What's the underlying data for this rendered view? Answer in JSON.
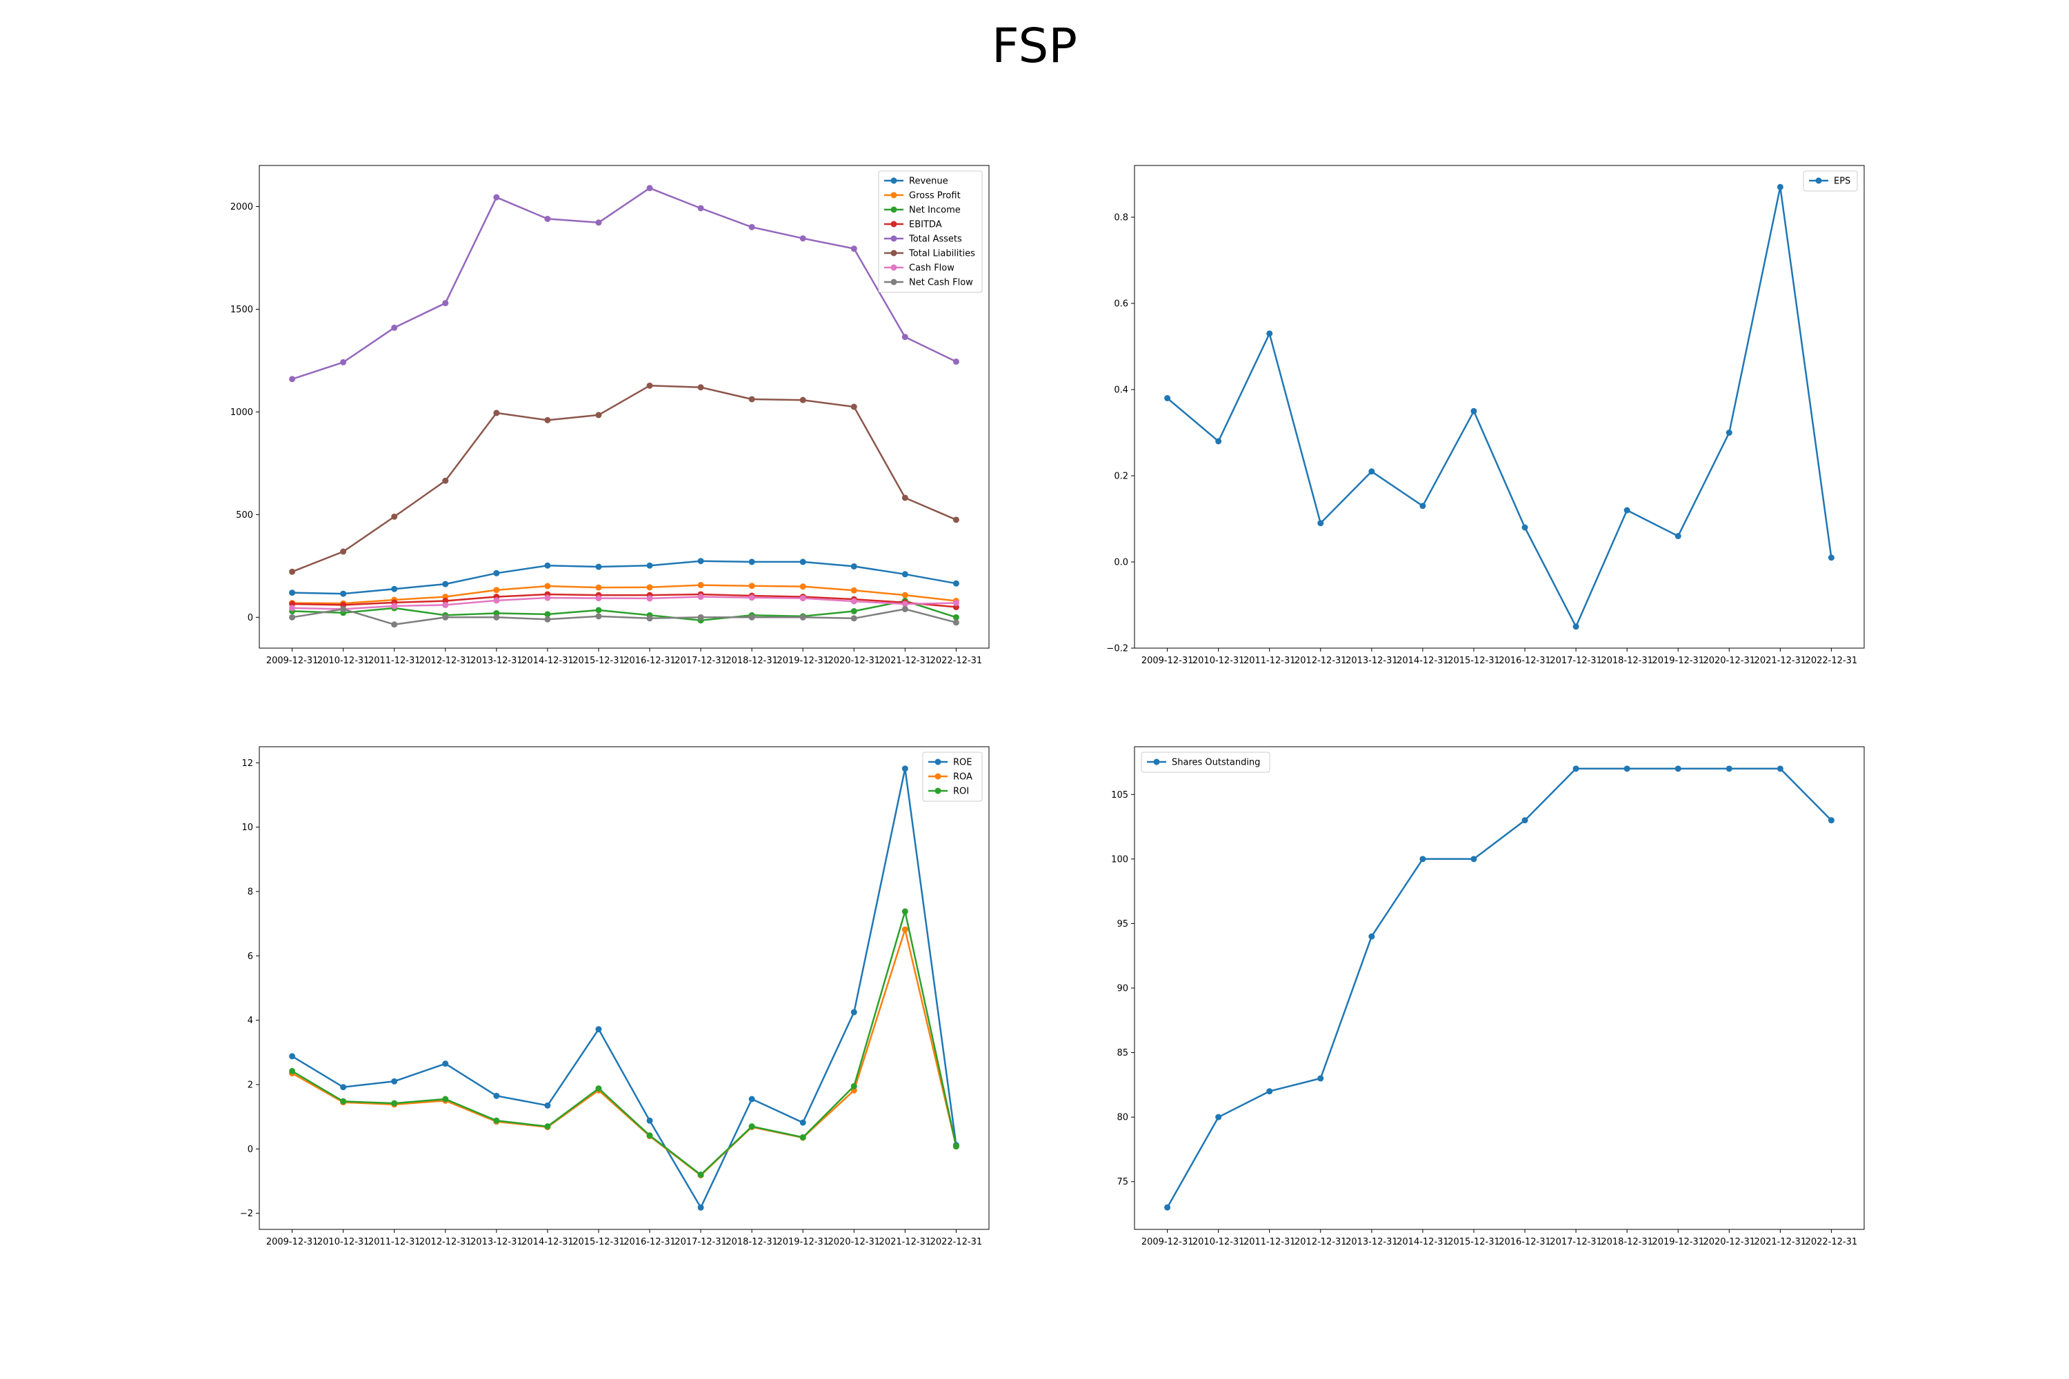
{
  "figure": {
    "title": "FSP"
  },
  "colors": {
    "C0": "#1f77b4",
    "C1": "#ff7f0e",
    "C2": "#2ca02c",
    "C3": "#d62728",
    "C4": "#9467bd",
    "C5": "#8c564b",
    "C6": "#e377c2",
    "C7": "#7f7f7f"
  },
  "chart_data": [
    {
      "type": "line",
      "title": "",
      "xlabel": "",
      "ylabel": "",
      "categories": [
        "2009-12-31",
        "2010-12-31",
        "2011-12-31",
        "2012-12-31",
        "2013-12-31",
        "2014-12-31",
        "2015-12-31",
        "2016-12-31",
        "2017-12-31",
        "2018-12-31",
        "2019-12-31",
        "2020-12-31",
        "2021-12-31",
        "2022-12-31"
      ],
      "ylim": [
        -150,
        2200
      ],
      "yticks": [
        0,
        500,
        1000,
        1500,
        2000
      ],
      "ytick_labels": [
        "0",
        "500",
        "1000",
        "1500",
        "2000"
      ],
      "legend_position": "top-right",
      "grid": false,
      "series": [
        {
          "name": "Revenue",
          "color": "#1f77b4",
          "values": [
            120,
            115,
            138,
            162,
            215,
            252,
            246,
            252,
            274,
            270,
            270,
            248,
            210,
            165
          ]
        },
        {
          "name": "Gross Profit",
          "color": "#ff7f0e",
          "values": [
            70,
            68,
            85,
            100,
            133,
            152,
            145,
            146,
            157,
            153,
            150,
            131,
            108,
            80
          ]
        },
        {
          "name": "Net Income",
          "color": "#2ca02c",
          "values": [
            30,
            22,
            45,
            10,
            20,
            15,
            35,
            10,
            -15,
            10,
            5,
            30,
            80,
            0
          ]
        },
        {
          "name": "EBITDA",
          "color": "#d62728",
          "values": [
            65,
            60,
            72,
            80,
            100,
            112,
            108,
            108,
            112,
            105,
            100,
            88,
            72,
            50
          ]
        },
        {
          "name": "Total Assets",
          "color": "#9467bd",
          "values": [
            1160,
            1242,
            1410,
            1530,
            2045,
            1940,
            1922,
            2090,
            1992,
            1900,
            1845,
            1795,
            1365,
            1245
          ]
        },
        {
          "name": "Total Liabilities",
          "color": "#8c564b",
          "values": [
            222,
            320,
            490,
            665,
            995,
            960,
            985,
            1128,
            1120,
            1062,
            1058,
            1025,
            582,
            475
          ]
        },
        {
          "name": "Cash Flow",
          "color": "#e377c2",
          "values": [
            45,
            40,
            55,
            60,
            82,
            95,
            93,
            92,
            100,
            96,
            93,
            78,
            65,
            70
          ]
        },
        {
          "name": "Net Cash Flow",
          "color": "#7f7f7f",
          "values": [
            0,
            40,
            -35,
            0,
            0,
            -10,
            5,
            -5,
            0,
            0,
            0,
            -5,
            40,
            -25
          ]
        }
      ]
    },
    {
      "type": "line",
      "title": "",
      "xlabel": "",
      "ylabel": "",
      "categories": [
        "2009-12-31",
        "2010-12-31",
        "2011-12-31",
        "2012-12-31",
        "2013-12-31",
        "2014-12-31",
        "2015-12-31",
        "2016-12-31",
        "2017-12-31",
        "2018-12-31",
        "2019-12-31",
        "2020-12-31",
        "2021-12-31",
        "2022-12-31"
      ],
      "ylim": [
        -0.2,
        0.92
      ],
      "yticks": [
        -0.2,
        0.0,
        0.2,
        0.4,
        0.6,
        0.8
      ],
      "ytick_labels": [
        "−0.2",
        "0.0",
        "0.2",
        "0.4",
        "0.6",
        "0.8"
      ],
      "legend_position": "top-right",
      "grid": false,
      "series": [
        {
          "name": "EPS",
          "color": "#1f77b4",
          "values": [
            0.38,
            0.28,
            0.53,
            0.09,
            0.21,
            0.13,
            0.35,
            0.08,
            -0.15,
            0.12,
            0.06,
            0.3,
            0.87,
            0.01
          ]
        }
      ]
    },
    {
      "type": "line",
      "title": "",
      "xlabel": "",
      "ylabel": "",
      "categories": [
        "2009-12-31",
        "2010-12-31",
        "2011-12-31",
        "2012-12-31",
        "2013-12-31",
        "2014-12-31",
        "2015-12-31",
        "2016-12-31",
        "2017-12-31",
        "2018-12-31",
        "2019-12-31",
        "2020-12-31",
        "2021-12-31",
        "2022-12-31"
      ],
      "ylim": [
        -2.5,
        12.5
      ],
      "yticks": [
        -2,
        0,
        2,
        4,
        6,
        8,
        10,
        12
      ],
      "ytick_labels": [
        "−2",
        "0",
        "2",
        "4",
        "6",
        "8",
        "10",
        "12"
      ],
      "legend_position": "top-right",
      "grid": false,
      "series": [
        {
          "name": "ROE",
          "color": "#1f77b4",
          "values": [
            2.88,
            1.92,
            2.1,
            2.65,
            1.65,
            1.35,
            3.72,
            0.88,
            -1.82,
            1.55,
            0.82,
            4.25,
            11.82,
            0.12
          ]
        },
        {
          "name": "ROA",
          "color": "#ff7f0e",
          "values": [
            2.35,
            1.45,
            1.38,
            1.5,
            0.85,
            0.68,
            1.82,
            0.4,
            -0.82,
            0.68,
            0.35,
            1.82,
            6.82,
            0.08
          ]
        },
        {
          "name": "ROI",
          "color": "#2ca02c",
          "values": [
            2.42,
            1.48,
            1.42,
            1.55,
            0.88,
            0.7,
            1.88,
            0.42,
            -0.8,
            0.7,
            0.36,
            1.95,
            7.38,
            0.08
          ]
        }
      ]
    },
    {
      "type": "line",
      "title": "",
      "xlabel": "",
      "ylabel": "",
      "categories": [
        "2009-12-31",
        "2010-12-31",
        "2011-12-31",
        "2012-12-31",
        "2013-12-31",
        "2014-12-31",
        "2015-12-31",
        "2016-12-31",
        "2017-12-31",
        "2018-12-31",
        "2019-12-31",
        "2020-12-31",
        "2021-12-31",
        "2022-12-31"
      ],
      "ylim": [
        71.3,
        108.7
      ],
      "yticks": [
        75,
        80,
        85,
        90,
        95,
        100,
        105
      ],
      "ytick_labels": [
        "75",
        "80",
        "85",
        "90",
        "95",
        "100",
        "105"
      ],
      "legend_position": "top-left",
      "grid": false,
      "series": [
        {
          "name": "Shares Outstanding",
          "color": "#1f77b4",
          "values": [
            73,
            80,
            82,
            83,
            94,
            100,
            100,
            103,
            107,
            107,
            107,
            107,
            107,
            103
          ]
        }
      ]
    }
  ]
}
